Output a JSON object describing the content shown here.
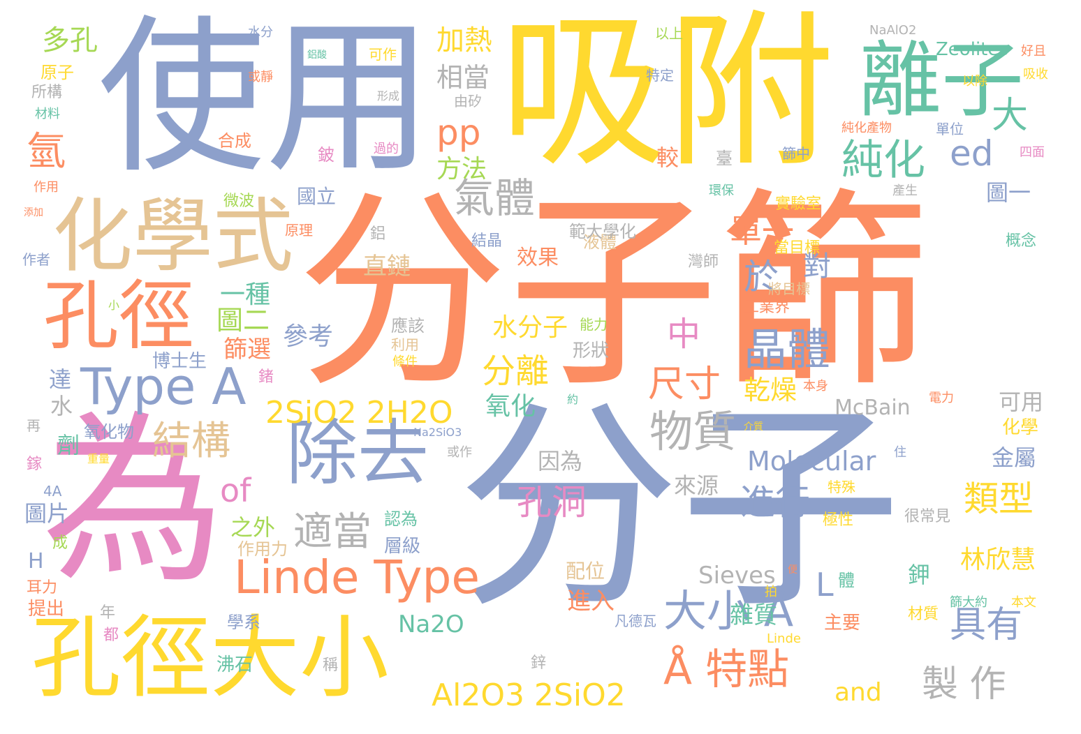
{
  "words": [
    {
      "text": "分子篩",
      "color": "#fc8d62"
    },
    {
      "text": "分子",
      "color": "#8da0cb"
    },
    {
      "text": "為",
      "color": "#e78ac3"
    },
    {
      "text": "使用",
      "color": "#8da0cb"
    },
    {
      "text": "吸附",
      "color": "#ffd92f"
    },
    {
      "text": "離子",
      "color": "#66c2a5"
    },
    {
      "text": "化學式",
      "color": "#e5c494"
    },
    {
      "text": "孔徑",
      "color": "#fc8d62"
    },
    {
      "text": "孔徑大小",
      "color": "#ffd92f"
    },
    {
      "text": "除去",
      "color": "#8da0cb"
    },
    {
      "text": "Type A",
      "color": "#8da0cb"
    },
    {
      "text": "Linde Type",
      "color": "#fc8d62"
    },
    {
      "text": "2SiO2 2H2O",
      "color": "#ffd92f"
    },
    {
      "text": "Al2O3 2SiO2",
      "color": "#ffd92f"
    },
    {
      "text": "大小 Å",
      "color": "#8da0cb"
    },
    {
      "text": "Å 特點",
      "color": "#fc8d62"
    },
    {
      "text": "晶體",
      "color": "#8da0cb"
    },
    {
      "text": "純化",
      "color": "#66c2a5"
    },
    {
      "text": "氣體",
      "color": "#b3b3b3"
    },
    {
      "text": "pp",
      "color": "#fc8d62"
    },
    {
      "text": "ed",
      "color": "#8da0cb"
    },
    {
      "text": "物質",
      "color": "#b3b3b3"
    },
    {
      "text": "結構",
      "color": "#e5c494"
    },
    {
      "text": "適當",
      "color": "#b3b3b3"
    },
    {
      "text": "分離",
      "color": "#ffd92f"
    },
    {
      "text": "孔洞",
      "color": "#e78ac3"
    },
    {
      "text": "進行",
      "color": "#8da0cb"
    },
    {
      "text": "類型",
      "color": "#ffd92f"
    },
    {
      "text": "具有",
      "color": "#8da0cb"
    },
    {
      "text": "製 作",
      "color": "#b3b3b3"
    },
    {
      "text": "尺寸",
      "color": "#fc8d62"
    },
    {
      "text": "Molecular",
      "color": "#8da0cb"
    },
    {
      "text": "of",
      "color": "#e78ac3"
    },
    {
      "text": "氫",
      "color": "#fc8d62"
    },
    {
      "text": "大",
      "color": "#66c2a5"
    },
    {
      "text": "單一",
      "color": "#fc8d62"
    },
    {
      "text": "加熱",
      "color": "#ffd92f"
    },
    {
      "text": "相當",
      "color": "#b3b3b3"
    },
    {
      "text": "方法",
      "color": "#a6d854"
    },
    {
      "text": "多孔",
      "color": "#a6d854"
    },
    {
      "text": "於",
      "color": "#8da0cb"
    },
    {
      "text": "對",
      "color": "#8da0cb"
    },
    {
      "text": "中",
      "color": "#e78ac3"
    },
    {
      "text": "乾燥",
      "color": "#ffd92f"
    },
    {
      "text": "Sieves",
      "color": "#b3b3b3"
    },
    {
      "text": "Zeolites",
      "color": "#66c2a5"
    },
    {
      "text": "Na2O",
      "color": "#66c2a5"
    },
    {
      "text": "McBain",
      "color": "#b3b3b3"
    },
    {
      "text": "and",
      "color": "#ffd92f"
    },
    {
      "text": "L",
      "color": "#8da0cb"
    },
    {
      "text": "林欣慧",
      "color": "#ffd92f"
    },
    {
      "text": "水分子",
      "color": "#ffd92f"
    },
    {
      "text": "氧化",
      "color": "#66c2a5"
    },
    {
      "text": "一種",
      "color": "#66c2a5"
    },
    {
      "text": "圖二",
      "color": "#a6d854"
    },
    {
      "text": "篩選",
      "color": "#fc8d62"
    },
    {
      "text": "參考",
      "color": "#8da0cb"
    },
    {
      "text": "直鏈",
      "color": "#e5c494"
    },
    {
      "text": "效果",
      "color": "#fc8d62"
    },
    {
      "text": "因為",
      "color": "#b3b3b3"
    },
    {
      "text": "來源",
      "color": "#b3b3b3"
    },
    {
      "text": "雜質",
      "color": "#66c2a5"
    },
    {
      "text": "進入",
      "color": "#fc8d62"
    },
    {
      "text": "鉀",
      "color": "#66c2a5"
    },
    {
      "text": "金屬",
      "color": "#8da0cb"
    },
    {
      "text": "可用",
      "color": "#b3b3b3"
    },
    {
      "text": "化學",
      "color": "#ffd92f"
    },
    {
      "text": "圖一",
      "color": "#8da0cb"
    },
    {
      "text": "國立",
      "color": "#8da0cb"
    },
    {
      "text": "微波",
      "color": "#a6d854"
    },
    {
      "text": "合成",
      "color": "#fc8d62"
    },
    {
      "text": "較",
      "color": "#fc8d62"
    },
    {
      "text": "液體",
      "color": "#e5c494"
    },
    {
      "text": "結晶",
      "color": "#8da0cb"
    },
    {
      "text": "範大學化",
      "color": "#b3b3b3"
    },
    {
      "text": "當目標",
      "color": "#ffd92f"
    },
    {
      "text": "實驗室",
      "color": "#ffd92f"
    },
    {
      "text": "工業界",
      "color": "#fc8d62"
    },
    {
      "text": "將目標",
      "color": "#e5c494"
    },
    {
      "text": "博士生",
      "color": "#8da0cb"
    },
    {
      "text": "氧化物",
      "color": "#8da0cb"
    },
    {
      "text": "達",
      "color": "#8da0cb"
    },
    {
      "text": "水",
      "color": "#b3b3b3"
    },
    {
      "text": "劑",
      "color": "#66c2a5"
    },
    {
      "text": "圖片",
      "color": "#8da0cb"
    },
    {
      "text": "H",
      "color": "#8da0cb"
    },
    {
      "text": "之外",
      "color": "#a6d854"
    },
    {
      "text": "作用力",
      "color": "#e5c494"
    },
    {
      "text": "層級",
      "color": "#8da0cb"
    },
    {
      "text": "認為",
      "color": "#66c2a5"
    },
    {
      "text": "應該",
      "color": "#b3b3b3"
    },
    {
      "text": "利用",
      "color": "#e5c494"
    },
    {
      "text": "條件",
      "color": "#ffd92f"
    },
    {
      "text": "形狀",
      "color": "#b3b3b3"
    },
    {
      "text": "能力",
      "color": "#a6d854"
    },
    {
      "text": "配位",
      "color": "#e5c494"
    },
    {
      "text": "沸石",
      "color": "#66c2a5"
    },
    {
      "text": "學系",
      "color": "#8da0cb"
    },
    {
      "text": "稱",
      "color": "#b3b3b3"
    },
    {
      "text": "鋅",
      "color": "#b3b3b3"
    },
    {
      "text": "年",
      "color": "#b3b3b3"
    },
    {
      "text": "都",
      "color": "#e78ac3"
    },
    {
      "text": "提出",
      "color": "#fc8d62"
    },
    {
      "text": "耳力",
      "color": "#fc8d62"
    },
    {
      "text": "成",
      "color": "#a6d854"
    },
    {
      "text": "極性",
      "color": "#ffd92f"
    },
    {
      "text": "特殊",
      "color": "#ffd92f"
    },
    {
      "text": "很常見",
      "color": "#b3b3b3"
    },
    {
      "text": "主要",
      "color": "#fc8d62"
    },
    {
      "text": "材質",
      "color": "#ffd92f"
    },
    {
      "text": "本文",
      "color": "#ffd92f"
    },
    {
      "text": "篩大約",
      "color": "#66c2a5"
    },
    {
      "text": "所構",
      "color": "#b3b3b3"
    },
    {
      "text": "材料",
      "color": "#66c2a5"
    },
    {
      "text": "原子",
      "color": "#ffd92f"
    },
    {
      "text": "作用",
      "color": "#fc8d62"
    },
    {
      "text": "作者",
      "color": "#8da0cb"
    },
    {
      "text": "再",
      "color": "#b3b3b3"
    },
    {
      "text": "鎵",
      "color": "#e78ac3"
    },
    {
      "text": "4A",
      "color": "#8da0cb"
    },
    {
      "text": "水分",
      "color": "#8da0cb"
    },
    {
      "text": "鋁酸",
      "color": "#66c2a5"
    },
    {
      "text": "可作",
      "color": "#ffd92f"
    },
    {
      "text": "或靜",
      "color": "#fc8d62"
    },
    {
      "text": "形成",
      "color": "#b3b3b3"
    },
    {
      "text": "由矽",
      "color": "#b3b3b3"
    },
    {
      "text": "鈹",
      "color": "#e78ac3"
    },
    {
      "text": "過的",
      "color": "#e78ac3"
    },
    {
      "text": "臺",
      "color": "#b3b3b3"
    },
    {
      "text": "灣師",
      "color": "#b3b3b3"
    },
    {
      "text": "鋁",
      "color": "#b3b3b3"
    },
    {
      "text": "鍺",
      "color": "#e78ac3"
    },
    {
      "text": "Na2SiO3",
      "color": "#8da0cb"
    },
    {
      "text": "或作",
      "color": "#b3b3b3"
    },
    {
      "text": "Linde",
      "color": "#ffd92f"
    },
    {
      "text": "特定",
      "color": "#8da0cb"
    },
    {
      "text": "以上",
      "color": "#a6d854"
    },
    {
      "text": "NaAlO2",
      "color": "#b3b3b3"
    },
    {
      "text": "好且",
      "color": "#fc8d62"
    },
    {
      "text": "吸收",
      "color": "#ffd92f"
    },
    {
      "text": "以除",
      "color": "#ffd92f"
    },
    {
      "text": "四面",
      "color": "#e78ac3"
    },
    {
      "text": "純化產物",
      "color": "#fc8d62"
    },
    {
      "text": "單位",
      "color": "#8da0cb"
    },
    {
      "text": "篩中",
      "color": "#8da0cb"
    },
    {
      "text": "概念",
      "color": "#66c2a5"
    },
    {
      "text": "電力",
      "color": "#fc8d62"
    },
    {
      "text": "產生",
      "color": "#b3b3b3"
    },
    {
      "text": "環保",
      "color": "#66c2a5"
    },
    {
      "text": "原理",
      "color": "#fc8d62"
    },
    {
      "text": "添加",
      "color": "#fc8d62"
    },
    {
      "text": "小",
      "color": "#a6d854"
    },
    {
      "text": "體",
      "color": "#66c2a5"
    },
    {
      "text": "拍",
      "color": "#ffd92f"
    },
    {
      "text": "介質",
      "color": "#ffd92f"
    },
    {
      "text": "住",
      "color": "#8da0cb"
    },
    {
      "text": "便",
      "color": "#fc8d62"
    },
    {
      "text": "凡德瓦",
      "color": "#8da0cb"
    },
    {
      "text": "重量",
      "color": "#ffd92f"
    },
    {
      "text": "本身",
      "color": "#fc8d62"
    },
    {
      "text": "約",
      "color": "#66c2a5"
    }
  ]
}
